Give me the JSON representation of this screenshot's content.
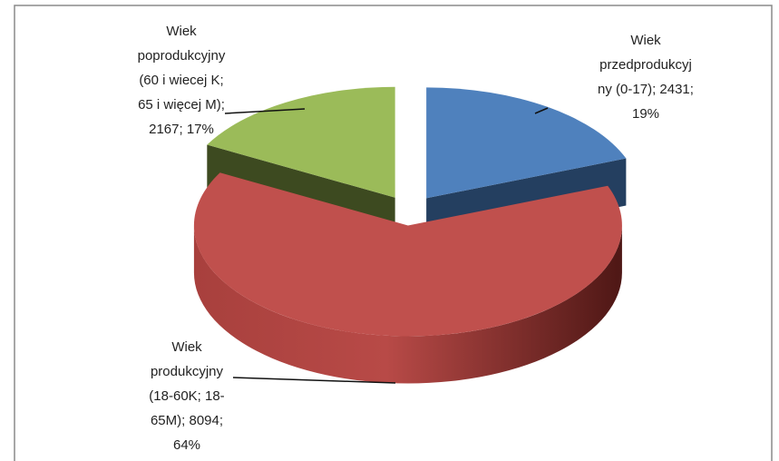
{
  "chart_data": {
    "type": "pie3d",
    "values": [
      2431,
      8094,
      2167
    ],
    "labels": [
      [
        "Wiek",
        "przedprodukcyj",
        "ny (0-17); 2431;",
        "19%"
      ],
      [
        "Wiek",
        "produkcyjny",
        "(18-60K; 18-",
        "65M); 8094;",
        "64%"
      ],
      [
        "Wiek",
        "poprodukcyjny",
        "(60 i wiecej K;",
        "65 i więcej M);",
        "2167; 17%"
      ]
    ],
    "colors": [
      "#4f81bd",
      "#c0504d",
      "#9bbb59"
    ],
    "side_colors": [
      "#243f60",
      "#8c2d2a",
      "#3d4a20"
    ]
  }
}
